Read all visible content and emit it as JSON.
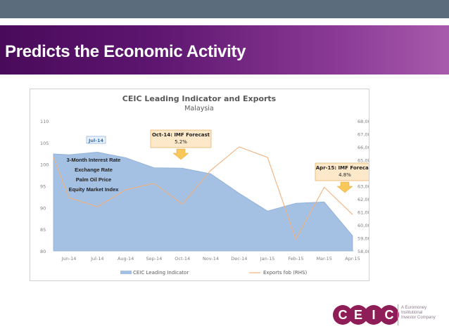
{
  "slide": {
    "title": "Predicts the Economic Activity",
    "colors": {
      "banner_dark": "#4a0a5a",
      "banner_light": "#a85aac",
      "topbar": "#5b6c7c"
    }
  },
  "chart_data": {
    "type": "area",
    "title": "CEIC Leading Indicator  and Exports",
    "subtitle": "Malaysia",
    "categories": [
      "Jun-14",
      "Jul-14",
      "Aug-14",
      "Sep-14",
      "Oct-14",
      "Nov-14",
      "Dec-14",
      "Jan-15",
      "Feb-15",
      "Mar-15",
      "Apr-15"
    ],
    "y_left": {
      "min": 80,
      "max": 110,
      "ticks": [
        "80",
        "85",
        "90",
        "95",
        "100",
        "105",
        "110"
      ]
    },
    "y_right": {
      "min": 58000,
      "max": 68000,
      "ticks": [
        "58,000",
        "59,000",
        "60,000",
        "61,000",
        "62,000",
        "63,000",
        "64,000",
        "65,000",
        "66,000",
        "67,000",
        "68,000"
      ]
    },
    "series": [
      {
        "name": "CEIC Leading Indicator",
        "kind": "area",
        "axis": "left",
        "color": "#a4c0e3",
        "values": [
          102.2,
          102.8,
          101.5,
          99.2,
          99.1,
          97.8,
          93.3,
          89.2,
          91.0,
          91.3,
          83.5
        ],
        "start_value": 102.4
      },
      {
        "name": "Exports fob (RHS)",
        "kind": "line",
        "axis": "right",
        "color": "#f2b27e",
        "values": [
          62100.0,
          61400.0,
          62700.0,
          63200.0,
          61600.0,
          64200.0,
          66000.0,
          65200.0,
          58900.0,
          62900.0,
          60800.0
        ],
        "start_value": 65200.0
      }
    ],
    "annotations": {
      "jul14_tag": "Jul-14",
      "oct_forecast_title": "Oct-14: IMF Forecast",
      "oct_forecast_value": "5.2%",
      "apr_forecast_title": "Apr-15: IMF Forecast",
      "apr_forecast_value": "4.8%",
      "components": [
        "3-Month Interest Rate",
        "Exchange Rate",
        "Palm Oil Price",
        "Equity Market Index"
      ]
    },
    "legend_position": "bottom"
  },
  "logo": {
    "letters": [
      "C",
      "E",
      "I",
      "C"
    ],
    "color": "#8e1d58",
    "tagline": [
      "A Euromoney",
      "Institutional",
      "Investor Company"
    ]
  }
}
